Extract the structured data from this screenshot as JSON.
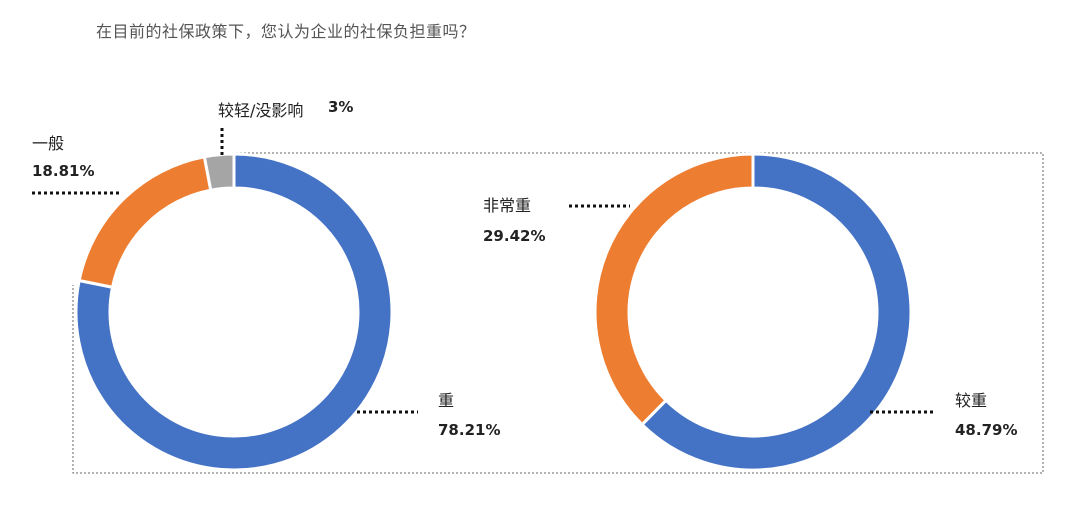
{
  "title": "在目前的社保政策下，您认为企业的社保负担重吗？",
  "chart_data": [
    {
      "type": "pie",
      "donut": true,
      "slices": [
        {
          "label": "重",
          "value_label": "78.21%",
          "value": 78.21,
          "color": "#4472C4"
        },
        {
          "label": "一般",
          "value_label": "18.81%",
          "value": 18.81,
          "color": "#ED7D31"
        },
        {
          "label": "较轻/没影响",
          "value_label": "3%",
          "value": 3,
          "color": "#A5A5A5"
        }
      ]
    },
    {
      "type": "pie",
      "donut": true,
      "slices": [
        {
          "label": "较重",
          "value_label": "48.79%",
          "value": 48.79,
          "color": "#4472C4"
        },
        {
          "label": "非常重",
          "value_label": "29.42%",
          "value": 29.42,
          "color": "#ED7D31"
        }
      ]
    }
  ]
}
